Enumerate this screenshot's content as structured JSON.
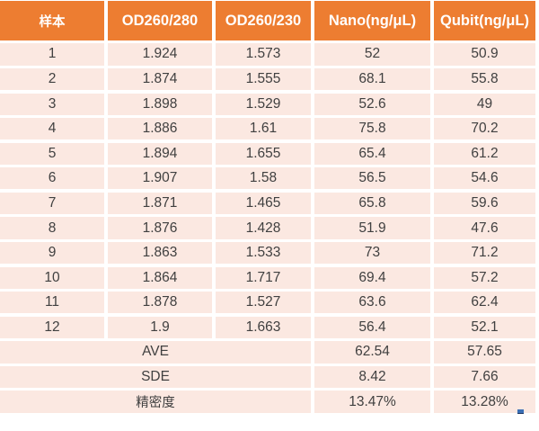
{
  "chart_data": {
    "type": "table",
    "title": "",
    "columns": [
      "样本",
      "OD260/280",
      "OD260/230",
      "Nano(ng/μL)",
      "Qubit(ng/μL)"
    ],
    "rows": [
      [
        "1",
        "1.924",
        "1.573",
        "52",
        "50.9"
      ],
      [
        "2",
        "1.874",
        "1.555",
        "68.1",
        "55.8"
      ],
      [
        "3",
        "1.898",
        "1.529",
        "52.6",
        "49"
      ],
      [
        "4",
        "1.886",
        "1.61",
        "75.8",
        "70.2"
      ],
      [
        "5",
        "1.894",
        "1.655",
        "65.4",
        "61.2"
      ],
      [
        "6",
        "1.907",
        "1.58",
        "56.5",
        "54.6"
      ],
      [
        "7",
        "1.871",
        "1.465",
        "65.8",
        "59.6"
      ],
      [
        "8",
        "1.876",
        "1.428",
        "51.9",
        "47.6"
      ],
      [
        "9",
        "1.863",
        "1.533",
        "73",
        "71.2"
      ],
      [
        "10",
        "1.864",
        "1.717",
        "69.4",
        "57.2"
      ],
      [
        "11",
        "1.878",
        "1.527",
        "63.6",
        "62.4"
      ],
      [
        "12",
        "1.9",
        "1.663",
        "56.4",
        "52.1"
      ]
    ],
    "summary": [
      [
        "AVE",
        "62.54",
        "57.65"
      ],
      [
        "SDE",
        "8.42",
        "7.66"
      ],
      [
        "精密度",
        "13.47%",
        "13.28%"
      ]
    ],
    "layout_hints": {
      "summary_label_colspan": 3,
      "banding": "uniform light rows with white separators",
      "alignment": "center"
    }
  },
  "colors": {
    "header_bg": "#ED7D31",
    "header_text": "#FFFFFF",
    "row_bg": "#FBE8E1",
    "body_text": "#404040",
    "background": "#FFFFFF",
    "separator": "#FFFFFF",
    "speck_blue": "#3A6FB5"
  }
}
